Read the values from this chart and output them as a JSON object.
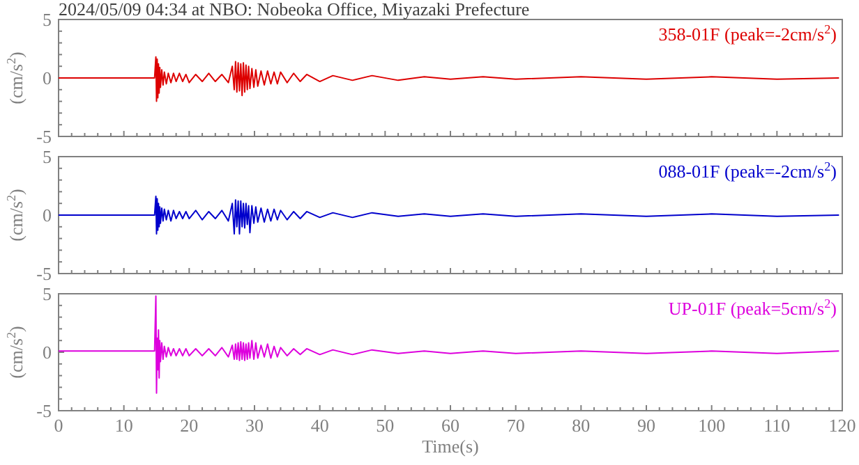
{
  "chart_data": [
    {
      "type": "line",
      "title": "2024/05/09 04:34 at NBO: Nobeoka Office, Miyazaki Prefecture",
      "ylabel": "(cm/s$^{2}$)",
      "tick_labels": "y",
      "xlim": [
        0,
        120
      ],
      "ylim": [
        -5,
        5
      ],
      "xticks": [
        {
          "value": 0,
          "label": null
        },
        {
          "value": 2,
          "label": null
        },
        {
          "value": 4,
          "label": null
        },
        {
          "value": 6,
          "label": null
        },
        {
          "value": 8,
          "label": null
        },
        {
          "value": 10,
          "label": null
        },
        {
          "value": 12,
          "label": null
        },
        {
          "value": 14,
          "label": null
        },
        {
          "value": 16,
          "label": null
        },
        {
          "value": 18,
          "label": null
        },
        {
          "value": 20,
          "label": null
        },
        {
          "value": 22,
          "label": null
        },
        {
          "value": 24,
          "label": null
        },
        {
          "value": 26,
          "label": null
        },
        {
          "value": 28,
          "label": null
        },
        {
          "value": 30,
          "label": null
        },
        {
          "value": 32,
          "label": null
        },
        {
          "value": 34,
          "label": null
        },
        {
          "value": 36,
          "label": null
        },
        {
          "value": 38,
          "label": null
        },
        {
          "value": 40,
          "label": null
        },
        {
          "value": 42,
          "label": null
        },
        {
          "value": 44,
          "label": null
        },
        {
          "value": 46,
          "label": null
        },
        {
          "value": 48,
          "label": null
        },
        {
          "value": 50,
          "label": null
        },
        {
          "value": 52,
          "label": null
        },
        {
          "value": 54,
          "label": null
        },
        {
          "value": 56,
          "label": null
        },
        {
          "value": 58,
          "label": null
        },
        {
          "value": 60,
          "label": null
        },
        {
          "value": 62,
          "label": null
        },
        {
          "value": 64,
          "label": null
        },
        {
          "value": 66,
          "label": null
        },
        {
          "value": 68,
          "label": null
        },
        {
          "value": 70,
          "label": null
        },
        {
          "value": 72,
          "label": null
        },
        {
          "value": 74,
          "label": null
        },
        {
          "value": 76,
          "label": null
        },
        {
          "value": 78,
          "label": null
        },
        {
          "value": 80,
          "label": null
        },
        {
          "value": 82,
          "label": null
        },
        {
          "value": 84,
          "label": null
        },
        {
          "value": 86,
          "label": null
        },
        {
          "value": 88,
          "label": null
        },
        {
          "value": 90,
          "label": null
        },
        {
          "value": 92,
          "label": null
        },
        {
          "value": 94,
          "label": null
        },
        {
          "value": 96,
          "label": null
        },
        {
          "value": 98,
          "label": null
        },
        {
          "value": 100,
          "label": null
        },
        {
          "value": 102,
          "label": null
        },
        {
          "value": 104,
          "label": null
        },
        {
          "value": 106,
          "label": null
        },
        {
          "value": 108,
          "label": null
        },
        {
          "value": 110,
          "label": null
        },
        {
          "value": 112,
          "label": null
        },
        {
          "value": 114,
          "label": null
        },
        {
          "value": 116,
          "label": null
        },
        {
          "value": 118,
          "label": null
        },
        {
          "value": 120,
          "label": null
        }
      ],
      "yticks": [
        -5,
        {
          "value": -4,
          "label": null
        },
        {
          "value": -3,
          "label": null
        },
        {
          "value": -2,
          "label": null
        },
        {
          "value": -1,
          "label": null
        },
        0,
        {
          "value": 1,
          "label": null
        },
        {
          "value": 2,
          "label": null
        },
        {
          "value": 3,
          "label": null
        },
        {
          "value": 4,
          "label": null
        },
        5
      ],
      "x": [
        0,
        14.7,
        14.9,
        15.0,
        15.1,
        15.2,
        15.3,
        15.4,
        15.5,
        15.6,
        15.8,
        16,
        16.2,
        16.5,
        16.8,
        17.2,
        17.6,
        18,
        18.5,
        19,
        19.5,
        20,
        21,
        22,
        23,
        24,
        25,
        26,
        26.6,
        26.9,
        27.1,
        27.3,
        27.5,
        27.7,
        27.9,
        28.1,
        28.3,
        28.5,
        28.7,
        28.9,
        29.1,
        29.3,
        29.6,
        29.9,
        30.2,
        30.5,
        31,
        31.5,
        32,
        32.5,
        33,
        33.5,
        34,
        35,
        36,
        37,
        38,
        40,
        42,
        45,
        48,
        52,
        56,
        60,
        65,
        70,
        80,
        90,
        100,
        110,
        119.5
      ],
      "series": [
        {
          "name": "358-01F (peak=-2cm/s$^{2}$)",
          "color": "#dd0000",
          "values": [
            0,
            0,
            1.8,
            -2.0,
            1.6,
            -1.7,
            1.2,
            -1.3,
            0.9,
            -0.8,
            0.7,
            -0.6,
            0.5,
            -0.5,
            0.4,
            -0.4,
            0.4,
            -0.3,
            0.4,
            -0.3,
            0.3,
            -0.4,
            0.3,
            -0.3,
            0.4,
            -0.3,
            0.3,
            -0.4,
            1.0,
            -1.0,
            1.4,
            -1.2,
            1.3,
            -1.1,
            1.2,
            -1.5,
            1.3,
            -1.2,
            1.1,
            -1.0,
            1.0,
            -0.9,
            0.8,
            -0.8,
            0.7,
            -0.7,
            0.6,
            -0.6,
            0.6,
            -0.5,
            0.5,
            -0.5,
            0.5,
            -0.4,
            0.4,
            -0.3,
            0.3,
            -0.3,
            0.2,
            -0.2,
            0.2,
            -0.2,
            0.1,
            -0.1,
            0.1,
            -0.1,
            0.1,
            -0.1,
            0.1,
            -0.1,
            0
          ]
        }
      ]
    },
    {
      "type": "line",
      "ylabel": "(cm/s$^{2}$)",
      "tick_labels": "y",
      "xlim": [
        0,
        120
      ],
      "ylim": [
        -5,
        5
      ],
      "xticks": [
        {
          "value": 0,
          "label": null
        },
        {
          "value": 2,
          "label": null
        },
        {
          "value": 4,
          "label": null
        },
        {
          "value": 6,
          "label": null
        },
        {
          "value": 8,
          "label": null
        },
        {
          "value": 10,
          "label": null
        },
        {
          "value": 12,
          "label": null
        },
        {
          "value": 14,
          "label": null
        },
        {
          "value": 16,
          "label": null
        },
        {
          "value": 18,
          "label": null
        },
        {
          "value": 20,
          "label": null
        },
        {
          "value": 22,
          "label": null
        },
        {
          "value": 24,
          "label": null
        },
        {
          "value": 26,
          "label": null
        },
        {
          "value": 28,
          "label": null
        },
        {
          "value": 30,
          "label": null
        },
        {
          "value": 32,
          "label": null
        },
        {
          "value": 34,
          "label": null
        },
        {
          "value": 36,
          "label": null
        },
        {
          "value": 38,
          "label": null
        },
        {
          "value": 40,
          "label": null
        },
        {
          "value": 42,
          "label": null
        },
        {
          "value": 44,
          "label": null
        },
        {
          "value": 46,
          "label": null
        },
        {
          "value": 48,
          "label": null
        },
        {
          "value": 50,
          "label": null
        },
        {
          "value": 52,
          "label": null
        },
        {
          "value": 54,
          "label": null
        },
        {
          "value": 56,
          "label": null
        },
        {
          "value": 58,
          "label": null
        },
        {
          "value": 60,
          "label": null
        },
        {
          "value": 62,
          "label": null
        },
        {
          "value": 64,
          "label": null
        },
        {
          "value": 66,
          "label": null
        },
        {
          "value": 68,
          "label": null
        },
        {
          "value": 70,
          "label": null
        },
        {
          "value": 72,
          "label": null
        },
        {
          "value": 74,
          "label": null
        },
        {
          "value": 76,
          "label": null
        },
        {
          "value": 78,
          "label": null
        },
        {
          "value": 80,
          "label": null
        },
        {
          "value": 82,
          "label": null
        },
        {
          "value": 84,
          "label": null
        },
        {
          "value": 86,
          "label": null
        },
        {
          "value": 88,
          "label": null
        },
        {
          "value": 90,
          "label": null
        },
        {
          "value": 92,
          "label": null
        },
        {
          "value": 94,
          "label": null
        },
        {
          "value": 96,
          "label": null
        },
        {
          "value": 98,
          "label": null
        },
        {
          "value": 100,
          "label": null
        },
        {
          "value": 102,
          "label": null
        },
        {
          "value": 104,
          "label": null
        },
        {
          "value": 106,
          "label": null
        },
        {
          "value": 108,
          "label": null
        },
        {
          "value": 110,
          "label": null
        },
        {
          "value": 112,
          "label": null
        },
        {
          "value": 114,
          "label": null
        },
        {
          "value": 116,
          "label": null
        },
        {
          "value": 118,
          "label": null
        },
        {
          "value": 120,
          "label": null
        }
      ],
      "yticks": [
        -5,
        {
          "value": -4,
          "label": null
        },
        {
          "value": -3,
          "label": null
        },
        {
          "value": -2,
          "label": null
        },
        {
          "value": -1,
          "label": null
        },
        0,
        {
          "value": 1,
          "label": null
        },
        {
          "value": 2,
          "label": null
        },
        {
          "value": 3,
          "label": null
        },
        {
          "value": 4,
          "label": null
        },
        5
      ],
      "x": [
        0,
        14.7,
        14.9,
        15.0,
        15.1,
        15.2,
        15.3,
        15.4,
        15.5,
        15.6,
        15.8,
        16,
        16.2,
        16.5,
        16.8,
        17.2,
        17.6,
        18,
        18.5,
        19,
        19.5,
        20,
        21,
        22,
        23,
        24,
        25,
        26,
        26.6,
        26.9,
        27.1,
        27.3,
        27.5,
        27.7,
        27.9,
        28.1,
        28.3,
        28.5,
        28.7,
        28.9,
        29.1,
        29.3,
        29.6,
        29.9,
        30.2,
        30.5,
        31,
        31.5,
        32,
        32.5,
        33,
        33.5,
        34,
        35,
        36,
        37,
        38,
        40,
        42,
        45,
        48,
        52,
        56,
        60,
        65,
        70,
        80,
        90,
        100,
        110,
        119.5
      ],
      "series": [
        {
          "name": "088-01F (peak=-2cm/s$^{2}$)",
          "color": "#0000cc",
          "values": [
            0,
            0,
            1.6,
            -1.6,
            1.4,
            -1.3,
            1.0,
            -1.0,
            0.7,
            -0.7,
            0.6,
            -0.5,
            0.5,
            -0.4,
            0.4,
            -0.5,
            0.4,
            -0.3,
            0.3,
            -0.3,
            0.3,
            -0.3,
            0.4,
            -0.4,
            0.3,
            -0.3,
            0.4,
            -0.5,
            1.0,
            -1.6,
            1.3,
            -1.0,
            1.2,
            -1.6,
            1.2,
            -1.0,
            1.0,
            -1.1,
            1.0,
            -0.8,
            0.8,
            -1.5,
            0.8,
            -0.7,
            0.7,
            -0.6,
            0.6,
            -0.6,
            0.5,
            -0.5,
            0.5,
            -0.4,
            0.4,
            -0.4,
            0.3,
            -0.3,
            0.3,
            -0.2,
            0.2,
            -0.2,
            0.2,
            -0.1,
            0.1,
            -0.1,
            0.1,
            -0.1,
            0.1,
            -0.1,
            0.1,
            -0.1,
            0
          ]
        }
      ]
    },
    {
      "type": "line",
      "xlabel": "Time(s)",
      "ylabel": "(cm/s$^{2}$)",
      "xlim": [
        0,
        120
      ],
      "ylim": [
        -5,
        5
      ],
      "xticks": [
        0,
        {
          "value": 2,
          "label": null
        },
        {
          "value": 4,
          "label": null
        },
        {
          "value": 6,
          "label": null
        },
        {
          "value": 8,
          "label": null
        },
        10,
        {
          "value": 12,
          "label": null
        },
        {
          "value": 14,
          "label": null
        },
        {
          "value": 16,
          "label": null
        },
        {
          "value": 18,
          "label": null
        },
        20,
        {
          "value": 22,
          "label": null
        },
        {
          "value": 24,
          "label": null
        },
        {
          "value": 26,
          "label": null
        },
        {
          "value": 28,
          "label": null
        },
        30,
        {
          "value": 32,
          "label": null
        },
        {
          "value": 34,
          "label": null
        },
        {
          "value": 36,
          "label": null
        },
        {
          "value": 38,
          "label": null
        },
        40,
        {
          "value": 42,
          "label": null
        },
        {
          "value": 44,
          "label": null
        },
        {
          "value": 46,
          "label": null
        },
        {
          "value": 48,
          "label": null
        },
        50,
        {
          "value": 52,
          "label": null
        },
        {
          "value": 54,
          "label": null
        },
        {
          "value": 56,
          "label": null
        },
        {
          "value": 58,
          "label": null
        },
        60,
        {
          "value": 62,
          "label": null
        },
        {
          "value": 64,
          "label": null
        },
        {
          "value": 66,
          "label": null
        },
        {
          "value": 68,
          "label": null
        },
        70,
        {
          "value": 72,
          "label": null
        },
        {
          "value": 74,
          "label": null
        },
        {
          "value": 76,
          "label": null
        },
        {
          "value": 78,
          "label": null
        },
        80,
        {
          "value": 82,
          "label": null
        },
        {
          "value": 84,
          "label": null
        },
        {
          "value": 86,
          "label": null
        },
        {
          "value": 88,
          "label": null
        },
        90,
        {
          "value": 92,
          "label": null
        },
        {
          "value": 94,
          "label": null
        },
        {
          "value": 96,
          "label": null
        },
        {
          "value": 98,
          "label": null
        },
        100,
        {
          "value": 102,
          "label": null
        },
        {
          "value": 104,
          "label": null
        },
        {
          "value": 106,
          "label": null
        },
        {
          "value": 108,
          "label": null
        },
        110,
        {
          "value": 112,
          "label": null
        },
        {
          "value": 114,
          "label": null
        },
        {
          "value": 116,
          "label": null
        },
        {
          "value": 118,
          "label": null
        },
        120
      ],
      "yticks": [
        -5,
        {
          "value": -4,
          "label": null
        },
        {
          "value": -3,
          "label": null
        },
        {
          "value": -2,
          "label": null
        },
        {
          "value": -1,
          "label": null
        },
        0,
        {
          "value": 1,
          "label": null
        },
        {
          "value": 2,
          "label": null
        },
        {
          "value": 3,
          "label": null
        },
        {
          "value": 4,
          "label": null
        },
        5
      ],
      "x": [
        0,
        14.7,
        14.9,
        15.0,
        15.1,
        15.2,
        15.3,
        15.4,
        15.5,
        15.6,
        15.8,
        16,
        16.2,
        16.5,
        16.8,
        17.2,
        17.6,
        18,
        18.5,
        19,
        19.5,
        20,
        21,
        22,
        23,
        24,
        25,
        26,
        26.6,
        26.9,
        27.1,
        27.3,
        27.5,
        27.7,
        27.9,
        28.1,
        28.3,
        28.5,
        28.7,
        28.9,
        29.1,
        29.3,
        29.6,
        29.9,
        30.2,
        30.5,
        31,
        31.5,
        32,
        32.5,
        33,
        33.5,
        34,
        35,
        36,
        37,
        38,
        40,
        42,
        45,
        48,
        52,
        56,
        60,
        65,
        70,
        80,
        90,
        100,
        110,
        119.5
      ],
      "series": [
        {
          "name": "UP-01F (peak=5cm/s$^{2}$)",
          "color": "#dd00dd",
          "values": [
            0.1,
            0.1,
            4.8,
            -3.5,
            1.2,
            -1.5,
            1.9,
            -2.2,
            1.0,
            -0.8,
            0.8,
            -0.6,
            0.5,
            -0.4,
            0.4,
            -0.3,
            0.3,
            -0.3,
            0.3,
            -0.3,
            0.3,
            -0.3,
            0.3,
            -0.3,
            0.3,
            -0.3,
            0.4,
            -0.4,
            0.6,
            -0.6,
            0.7,
            -0.6,
            0.8,
            -0.7,
            0.9,
            -0.6,
            0.8,
            -0.7,
            0.7,
            -0.6,
            0.8,
            -0.5,
            1.0,
            -0.6,
            0.8,
            -0.5,
            0.6,
            -0.4,
            0.7,
            -0.5,
            0.5,
            -0.4,
            0.4,
            -0.3,
            0.3,
            -0.2,
            0.3,
            -0.2,
            0.2,
            -0.2,
            0.2,
            -0.1,
            0.1,
            -0.1,
            0.1,
            -0.1,
            0.1,
            -0.1,
            0.1,
            -0.1,
            0.1
          ]
        }
      ]
    }
  ]
}
